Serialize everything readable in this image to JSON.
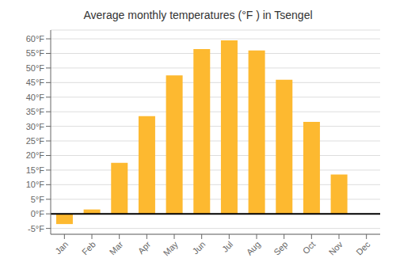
{
  "chart_data": {
    "type": "bar",
    "title": "Average monthly temperatures (°F ) in Tsengel",
    "categories": [
      "Jan",
      "Feb",
      "Mar",
      "Apr",
      "May",
      "Jun",
      "Jul",
      "Aug",
      "Sep",
      "Oct",
      "Nov",
      "Dec"
    ],
    "values": [
      -3.5,
      1.5,
      17.5,
      33.5,
      47.5,
      56.5,
      59.5,
      56.0,
      46.0,
      31.5,
      13.5,
      0
    ],
    "color": "#FDB930",
    "ylim": [
      -7,
      63
    ],
    "yticks": [
      {
        "value": -5,
        "label": "-5°F"
      },
      {
        "value": 0,
        "label": "0°F"
      },
      {
        "value": 5,
        "label": "5°F"
      },
      {
        "value": 10,
        "label": "10°F"
      },
      {
        "value": 15,
        "label": "15°F"
      },
      {
        "value": 20,
        "label": "20°F"
      },
      {
        "value": 25,
        "label": "25°F"
      },
      {
        "value": 30,
        "label": "30°F"
      },
      {
        "value": 35,
        "label": "35°F"
      },
      {
        "value": 40,
        "label": "40°F"
      },
      {
        "value": 45,
        "label": "45°F"
      },
      {
        "value": 50,
        "label": "50°F"
      },
      {
        "value": 55,
        "label": "55°F"
      },
      {
        "value": 60,
        "label": "60°F"
      }
    ],
    "grid": true
  }
}
